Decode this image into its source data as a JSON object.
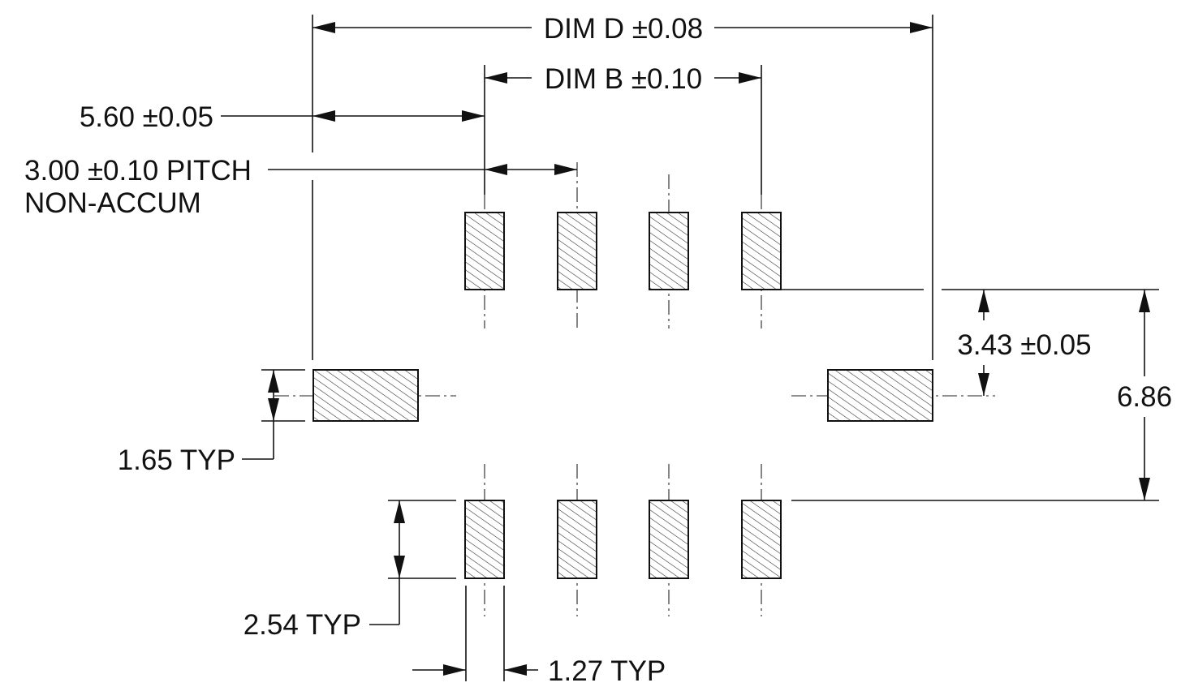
{
  "drawing": {
    "dimensions": {
      "dim_d": "DIM D ±0.08",
      "dim_b": "DIM B ±0.10",
      "offset": "5.60 ±0.05",
      "pitch_line1": "3.00 ±0.10 PITCH",
      "pitch_line2": "NON-ACCUM",
      "height_half": "3.43 ±0.05",
      "height_total": "6.86",
      "side_pad_height": "1.65 TYP",
      "pad_length": "2.54 TYP",
      "pad_width": "1.27 TYP"
    },
    "pads": {
      "top_row_count": 4,
      "bottom_row_count": 4,
      "side_count": 2
    },
    "colors": {
      "ink": "#111111",
      "background": "#ffffff"
    }
  }
}
